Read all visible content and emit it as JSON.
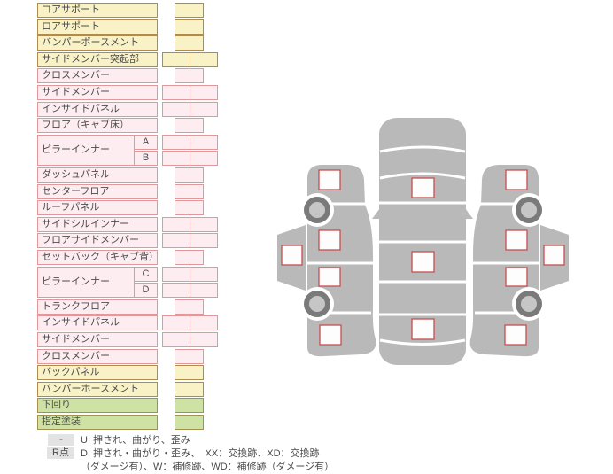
{
  "table": {
    "rows": [
      {
        "label": "コアサポート",
        "color": "yellow",
        "cells": "single",
        "span": 1
      },
      {
        "label": "ロアサポート",
        "color": "yellow",
        "cells": "single",
        "span": 1
      },
      {
        "label": "バンパーポースメント",
        "color": "yellow",
        "cells": "single",
        "span": 1
      },
      {
        "label": "サイドメンバー突起部",
        "color": "yellow",
        "cells": "double",
        "span": 1
      },
      {
        "label": "クロスメンバー",
        "color": "pink",
        "cells": "single",
        "span": 1
      },
      {
        "label": "サイドメンバー",
        "color": "pink",
        "cells": "double",
        "span": 1
      },
      {
        "label": "インサイドパネル",
        "color": "pink",
        "cells": "double",
        "span": 1
      },
      {
        "label": "フロア（キャブ床）",
        "color": "pink",
        "cells": "single",
        "span": 1
      },
      {
        "label": "ピラーインナー",
        "color": "pink",
        "cells": "double",
        "span": 2,
        "sub": "A"
      },
      {
        "label": "",
        "color": "pink",
        "cells": "double",
        "span": 0,
        "sub": "B"
      },
      {
        "label": "ダッシュパネル",
        "color": "pink",
        "cells": "single",
        "span": 1
      },
      {
        "label": "センターフロア",
        "color": "pink",
        "cells": "single",
        "span": 1
      },
      {
        "label": "ルーフパネル",
        "color": "pink",
        "cells": "single",
        "span": 1
      },
      {
        "label": "サイドシルインナー",
        "color": "pink",
        "cells": "double",
        "span": 1
      },
      {
        "label": "フロアサイドメンバー",
        "color": "pink",
        "cells": "double",
        "span": 1
      },
      {
        "label": "セットバック（キャブ背）",
        "color": "pink",
        "cells": "single",
        "span": 1
      },
      {
        "label": "ピラーインナー",
        "color": "pink",
        "cells": "double",
        "span": 2,
        "sub": "C"
      },
      {
        "label": "",
        "color": "pink",
        "cells": "double",
        "span": 0,
        "sub": "D"
      },
      {
        "label": "トランクフロア",
        "color": "pink",
        "cells": "single",
        "span": 1
      },
      {
        "label": "インサイドパネル",
        "color": "pink",
        "cells": "double",
        "span": 1
      },
      {
        "label": "サイドメンバー",
        "color": "pink",
        "cells": "double",
        "span": 1
      },
      {
        "label": "クロスメンバー",
        "color": "pink",
        "cells": "single",
        "span": 1
      },
      {
        "label": "バックパネル",
        "color": "yellow",
        "cells": "single",
        "span": 1
      },
      {
        "label": "バンパーホースメント",
        "color": "yellow",
        "cells": "single",
        "span": 1
      },
      {
        "label": "下回り",
        "color": "green",
        "cells": "single",
        "span": 1
      },
      {
        "label": "指定塗装",
        "color": "green",
        "cells": "single",
        "span": 1
      }
    ],
    "cell_value_empty": ""
  },
  "legend": {
    "rows": [
      {
        "badge": "-",
        "text": "U: 押され、曲がり、歪み"
      },
      {
        "badge": "R点",
        "text": "D: 押され・曲がり・歪み、　XX：交換跡、XD：交換跡"
      },
      {
        "badge": "",
        "text": "（ダメージ有）、W：補修跡、WD：補修跡（ダメージ有）"
      }
    ]
  },
  "diagram": {
    "views": [
      {
        "name": "left-side-view",
        "marker_boxes": 5,
        "wheels": 2
      },
      {
        "name": "top-view",
        "marker_boxes": 3,
        "wheels": 0
      },
      {
        "name": "right-side-view",
        "marker_boxes": 5,
        "wheels": 2
      }
    ],
    "marker_boxes_total": 13,
    "all_markers_empty": true
  },
  "colors": {
    "row_yellow_fill": "#f8f2c6",
    "row_yellow_border": "#ad8c4d",
    "row_pink_fill": "#fdedf0",
    "row_pink_border": "#e2979a",
    "row_green_fill": "#cfe2a5",
    "row_green_border": "#a3924f",
    "text": "#4b4b4b",
    "car_body_gray": "#b9b9b9",
    "wheel_ring": "#7a7a7a",
    "wheel_hub": "#c6c6c6",
    "marker_border": "#c4504e",
    "marker_fill": "#fdfdfd",
    "legend_badge_bg": "#e3e3e3"
  }
}
